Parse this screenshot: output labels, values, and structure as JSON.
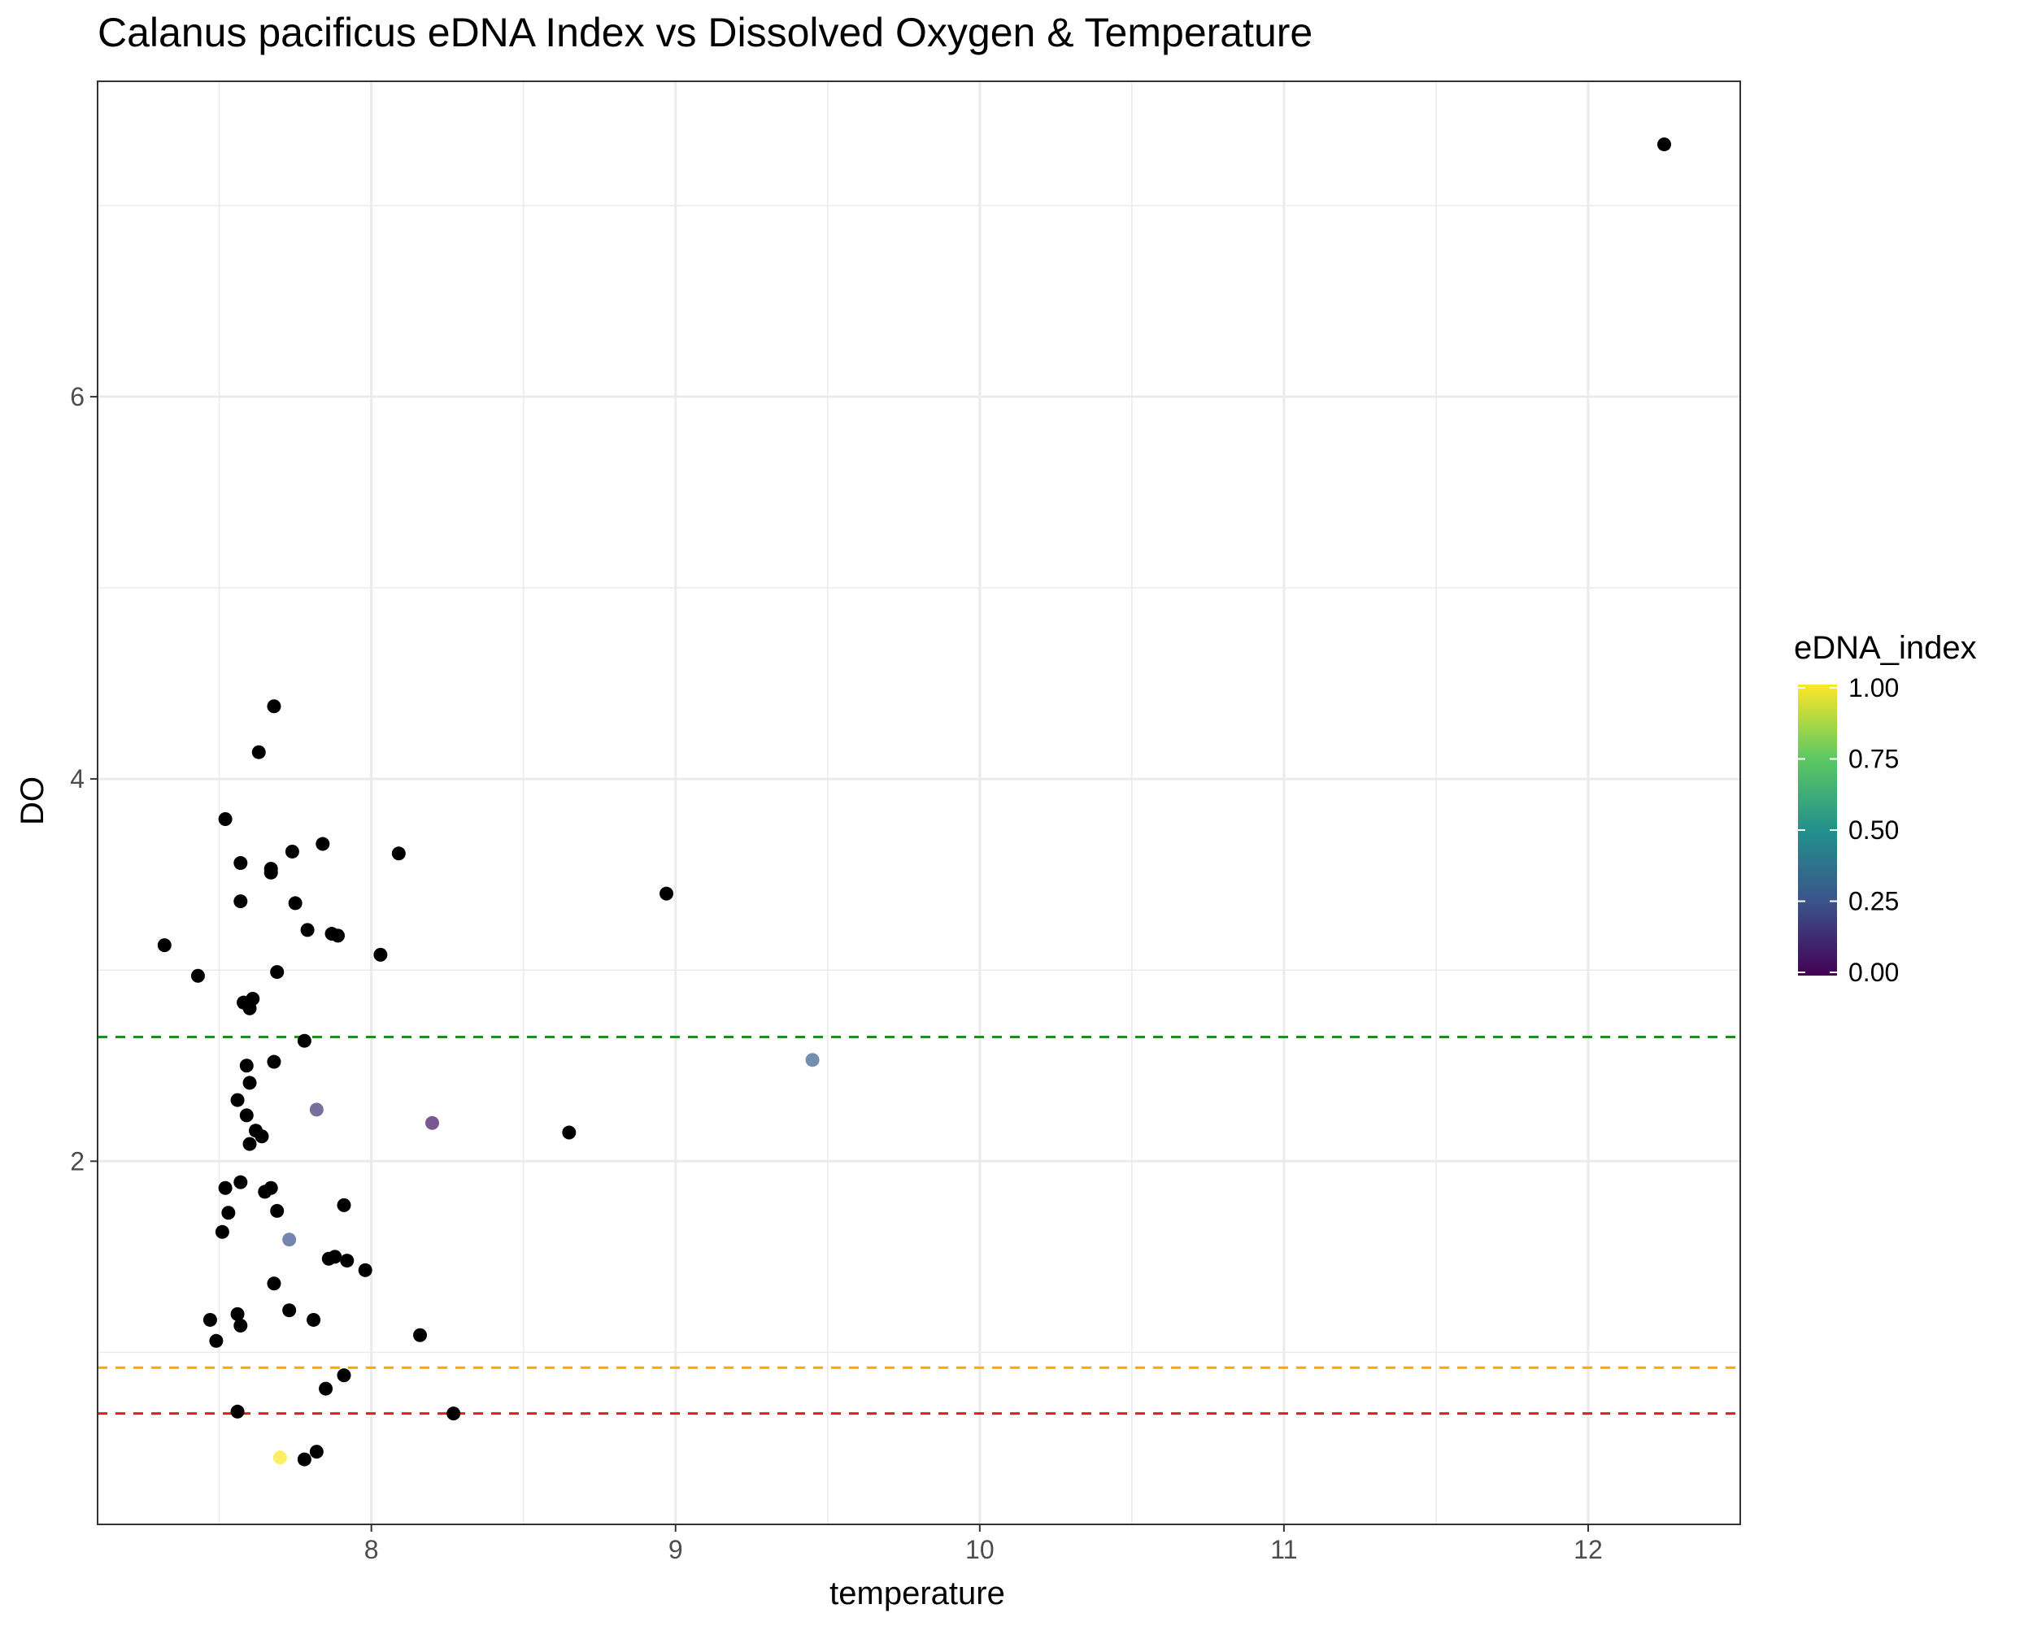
{
  "chart_data": {
    "type": "scatter",
    "title": "Calanus pacificus eDNA Index vs Dissolved Oxygen & Temperature",
    "xlabel": "temperature",
    "ylabel": "DO",
    "xlim": [
      7.1,
      12.5
    ],
    "ylim": [
      0.1,
      7.65
    ],
    "x_ticks": [
      8,
      9,
      10,
      11,
      12
    ],
    "x_tick_labels": [
      "8",
      "9",
      "10",
      "11",
      "12"
    ],
    "y_ticks": [
      2,
      4,
      6
    ],
    "y_tick_labels": [
      "2",
      "4",
      "6"
    ],
    "grid": true,
    "legend": {
      "title": "eDNA_index",
      "position": "right",
      "type": "colorbar",
      "colormap": "viridis",
      "ticks": [
        0,
        0.25,
        0.5,
        0.75,
        1.0
      ],
      "tick_labels": [
        "0.00",
        "0.25",
        "0.50",
        "0.75",
        "1.00"
      ]
    },
    "colors": {
      "viridis": [
        "#440154",
        "#3b528b",
        "#21918c",
        "#5ec962",
        "#fde725"
      ],
      "unmatched_point": "#000000"
    },
    "reference_lines": [
      {
        "y": 2.65,
        "color": "#228b22",
        "style": "dashed"
      },
      {
        "y": 0.92,
        "color": "#ffa500",
        "style": "dashed"
      },
      {
        "y": 0.68,
        "color": "#e41a1c",
        "style": "dashed"
      }
    ],
    "points": [
      {
        "x": 12.25,
        "y": 7.32,
        "edna_index": null
      },
      {
        "x": 7.68,
        "y": 4.38,
        "edna_index": null
      },
      {
        "x": 7.63,
        "y": 4.14,
        "edna_index": null
      },
      {
        "x": 7.52,
        "y": 3.79,
        "edna_index": null
      },
      {
        "x": 7.84,
        "y": 3.66,
        "edna_index": null
      },
      {
        "x": 7.74,
        "y": 3.62,
        "edna_index": null
      },
      {
        "x": 8.09,
        "y": 3.61,
        "edna_index": null
      },
      {
        "x": 7.57,
        "y": 3.56,
        "edna_index": null
      },
      {
        "x": 7.67,
        "y": 3.53,
        "edna_index": null
      },
      {
        "x": 7.67,
        "y": 3.51,
        "edna_index": null
      },
      {
        "x": 8.97,
        "y": 3.4,
        "edna_index": null
      },
      {
        "x": 7.57,
        "y": 3.36,
        "edna_index": null
      },
      {
        "x": 7.75,
        "y": 3.35,
        "edna_index": null
      },
      {
        "x": 7.79,
        "y": 3.21,
        "edna_index": null
      },
      {
        "x": 7.87,
        "y": 3.19,
        "edna_index": null
      },
      {
        "x": 7.89,
        "y": 3.18,
        "edna_index": null
      },
      {
        "x": 7.32,
        "y": 3.13,
        "edna_index": null
      },
      {
        "x": 8.03,
        "y": 3.08,
        "edna_index": null
      },
      {
        "x": 7.69,
        "y": 2.99,
        "edna_index": null
      },
      {
        "x": 7.43,
        "y": 2.97,
        "edna_index": null
      },
      {
        "x": 7.61,
        "y": 2.85,
        "edna_index": null
      },
      {
        "x": 7.58,
        "y": 2.83,
        "edna_index": null
      },
      {
        "x": 7.6,
        "y": 2.8,
        "edna_index": null
      },
      {
        "x": 7.78,
        "y": 2.63,
        "edna_index": null
      },
      {
        "x": 7.68,
        "y": 2.52,
        "edna_index": null
      },
      {
        "x": 7.59,
        "y": 2.5,
        "edna_index": null
      },
      {
        "x": 9.45,
        "y": 2.53,
        "edna_index": 0.3
      },
      {
        "x": 7.6,
        "y": 2.41,
        "edna_index": null
      },
      {
        "x": 7.56,
        "y": 2.32,
        "edna_index": null
      },
      {
        "x": 7.82,
        "y": 2.27,
        "edna_index": 0.15
      },
      {
        "x": 7.59,
        "y": 2.24,
        "edna_index": null
      },
      {
        "x": 8.2,
        "y": 2.2,
        "edna_index": 0.05
      },
      {
        "x": 7.62,
        "y": 2.16,
        "edna_index": null
      },
      {
        "x": 8.65,
        "y": 2.15,
        "edna_index": null
      },
      {
        "x": 7.64,
        "y": 2.13,
        "edna_index": null
      },
      {
        "x": 7.6,
        "y": 2.09,
        "edna_index": null
      },
      {
        "x": 7.57,
        "y": 1.89,
        "edna_index": null
      },
      {
        "x": 7.52,
        "y": 1.86,
        "edna_index": null
      },
      {
        "x": 7.67,
        "y": 1.86,
        "edna_index": null
      },
      {
        "x": 7.65,
        "y": 1.84,
        "edna_index": null
      },
      {
        "x": 7.91,
        "y": 1.77,
        "edna_index": null
      },
      {
        "x": 7.69,
        "y": 1.74,
        "edna_index": null
      },
      {
        "x": 7.53,
        "y": 1.73,
        "edna_index": null
      },
      {
        "x": 7.51,
        "y": 1.63,
        "edna_index": null
      },
      {
        "x": 7.73,
        "y": 1.59,
        "edna_index": 0.25
      },
      {
        "x": 7.88,
        "y": 1.5,
        "edna_index": null
      },
      {
        "x": 7.86,
        "y": 1.49,
        "edna_index": null
      },
      {
        "x": 7.92,
        "y": 1.48,
        "edna_index": null
      },
      {
        "x": 7.98,
        "y": 1.43,
        "edna_index": null
      },
      {
        "x": 7.68,
        "y": 1.36,
        "edna_index": null
      },
      {
        "x": 7.73,
        "y": 1.22,
        "edna_index": null
      },
      {
        "x": 7.56,
        "y": 1.2,
        "edna_index": null
      },
      {
        "x": 7.47,
        "y": 1.17,
        "edna_index": null
      },
      {
        "x": 7.81,
        "y": 1.17,
        "edna_index": null
      },
      {
        "x": 7.57,
        "y": 1.14,
        "edna_index": null
      },
      {
        "x": 8.16,
        "y": 1.09,
        "edna_index": null
      },
      {
        "x": 7.49,
        "y": 1.06,
        "edna_index": null
      },
      {
        "x": 7.91,
        "y": 0.88,
        "edna_index": null
      },
      {
        "x": 7.85,
        "y": 0.81,
        "edna_index": null
      },
      {
        "x": 7.56,
        "y": 0.69,
        "edna_index": null
      },
      {
        "x": 8.27,
        "y": 0.68,
        "edna_index": null
      },
      {
        "x": 7.82,
        "y": 0.48,
        "edna_index": null
      },
      {
        "x": 7.7,
        "y": 0.45,
        "edna_index": 1.0
      },
      {
        "x": 7.78,
        "y": 0.44,
        "edna_index": null
      }
    ]
  }
}
